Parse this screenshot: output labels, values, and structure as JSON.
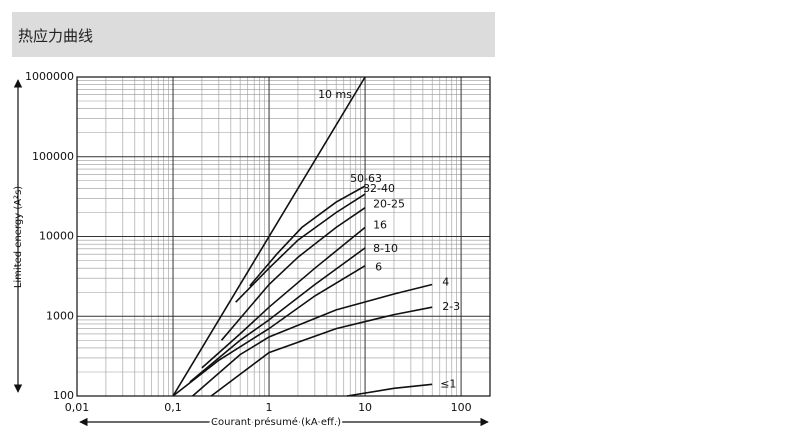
{
  "header": {
    "title": "热应力曲线"
  },
  "chart_data": {
    "type": "line",
    "xlabel": "Courant présumé (kA eff.)",
    "ylabel": "Limited energy (A²s)",
    "xscale": "log",
    "yscale": "log",
    "grid": true,
    "color": "#111111",
    "xlim": [
      0.01,
      200
    ],
    "ylim": [
      100,
      1000000
    ],
    "xticks": [
      {
        "value": 0.01,
        "label": "0,01"
      },
      {
        "value": 0.1,
        "label": "0,1"
      },
      1,
      10,
      100
    ],
    "yticks": [
      100,
      1000,
      10000,
      100000,
      1000000
    ],
    "series": [
      {
        "name": "10 ms",
        "x": [
          0.1,
          10
        ],
        "values": [
          100,
          1000000
        ]
      },
      {
        "name": "50-63",
        "x": [
          0.63,
          1.2,
          2.2,
          5,
          10
        ],
        "values": [
          2400,
          6000,
          13000,
          27000,
          43000
        ]
      },
      {
        "name": "32-40",
        "x": [
          0.45,
          1,
          2,
          5,
          10
        ],
        "values": [
          1500,
          4000,
          9000,
          20000,
          34000
        ]
      },
      {
        "name": "20-25",
        "x": [
          0.32,
          1,
          2,
          5,
          10
        ],
        "values": [
          500,
          2500,
          5500,
          13000,
          23000
        ]
      },
      {
        "name": "16",
        "x": [
          0.2,
          0.5,
          1,
          3,
          10
        ],
        "values": [
          225,
          600,
          1300,
          4000,
          13000
        ]
      },
      {
        "name": "8-10",
        "x": [
          0.15,
          0.5,
          1,
          3,
          10
        ],
        "values": [
          150,
          500,
          900,
          2500,
          7200
        ]
      },
      {
        "name": "6",
        "x": [
          0.1,
          0.3,
          1,
          3,
          10
        ],
        "values": [
          100,
          280,
          700,
          1800,
          4300
        ]
      },
      {
        "name": "4",
        "x": [
          0.16,
          0.5,
          1,
          5,
          20,
          50
        ],
        "values": [
          100,
          330,
          550,
          1200,
          1900,
          2500
        ]
      },
      {
        "name": "2-3",
        "x": [
          0.25,
          1,
          5,
          20,
          50
        ],
        "values": [
          100,
          350,
          700,
          1050,
          1300
        ]
      },
      {
        "name": "≤1",
        "x": [
          6.5,
          20,
          50
        ],
        "values": [
          100,
          125,
          140
        ]
      }
    ]
  }
}
